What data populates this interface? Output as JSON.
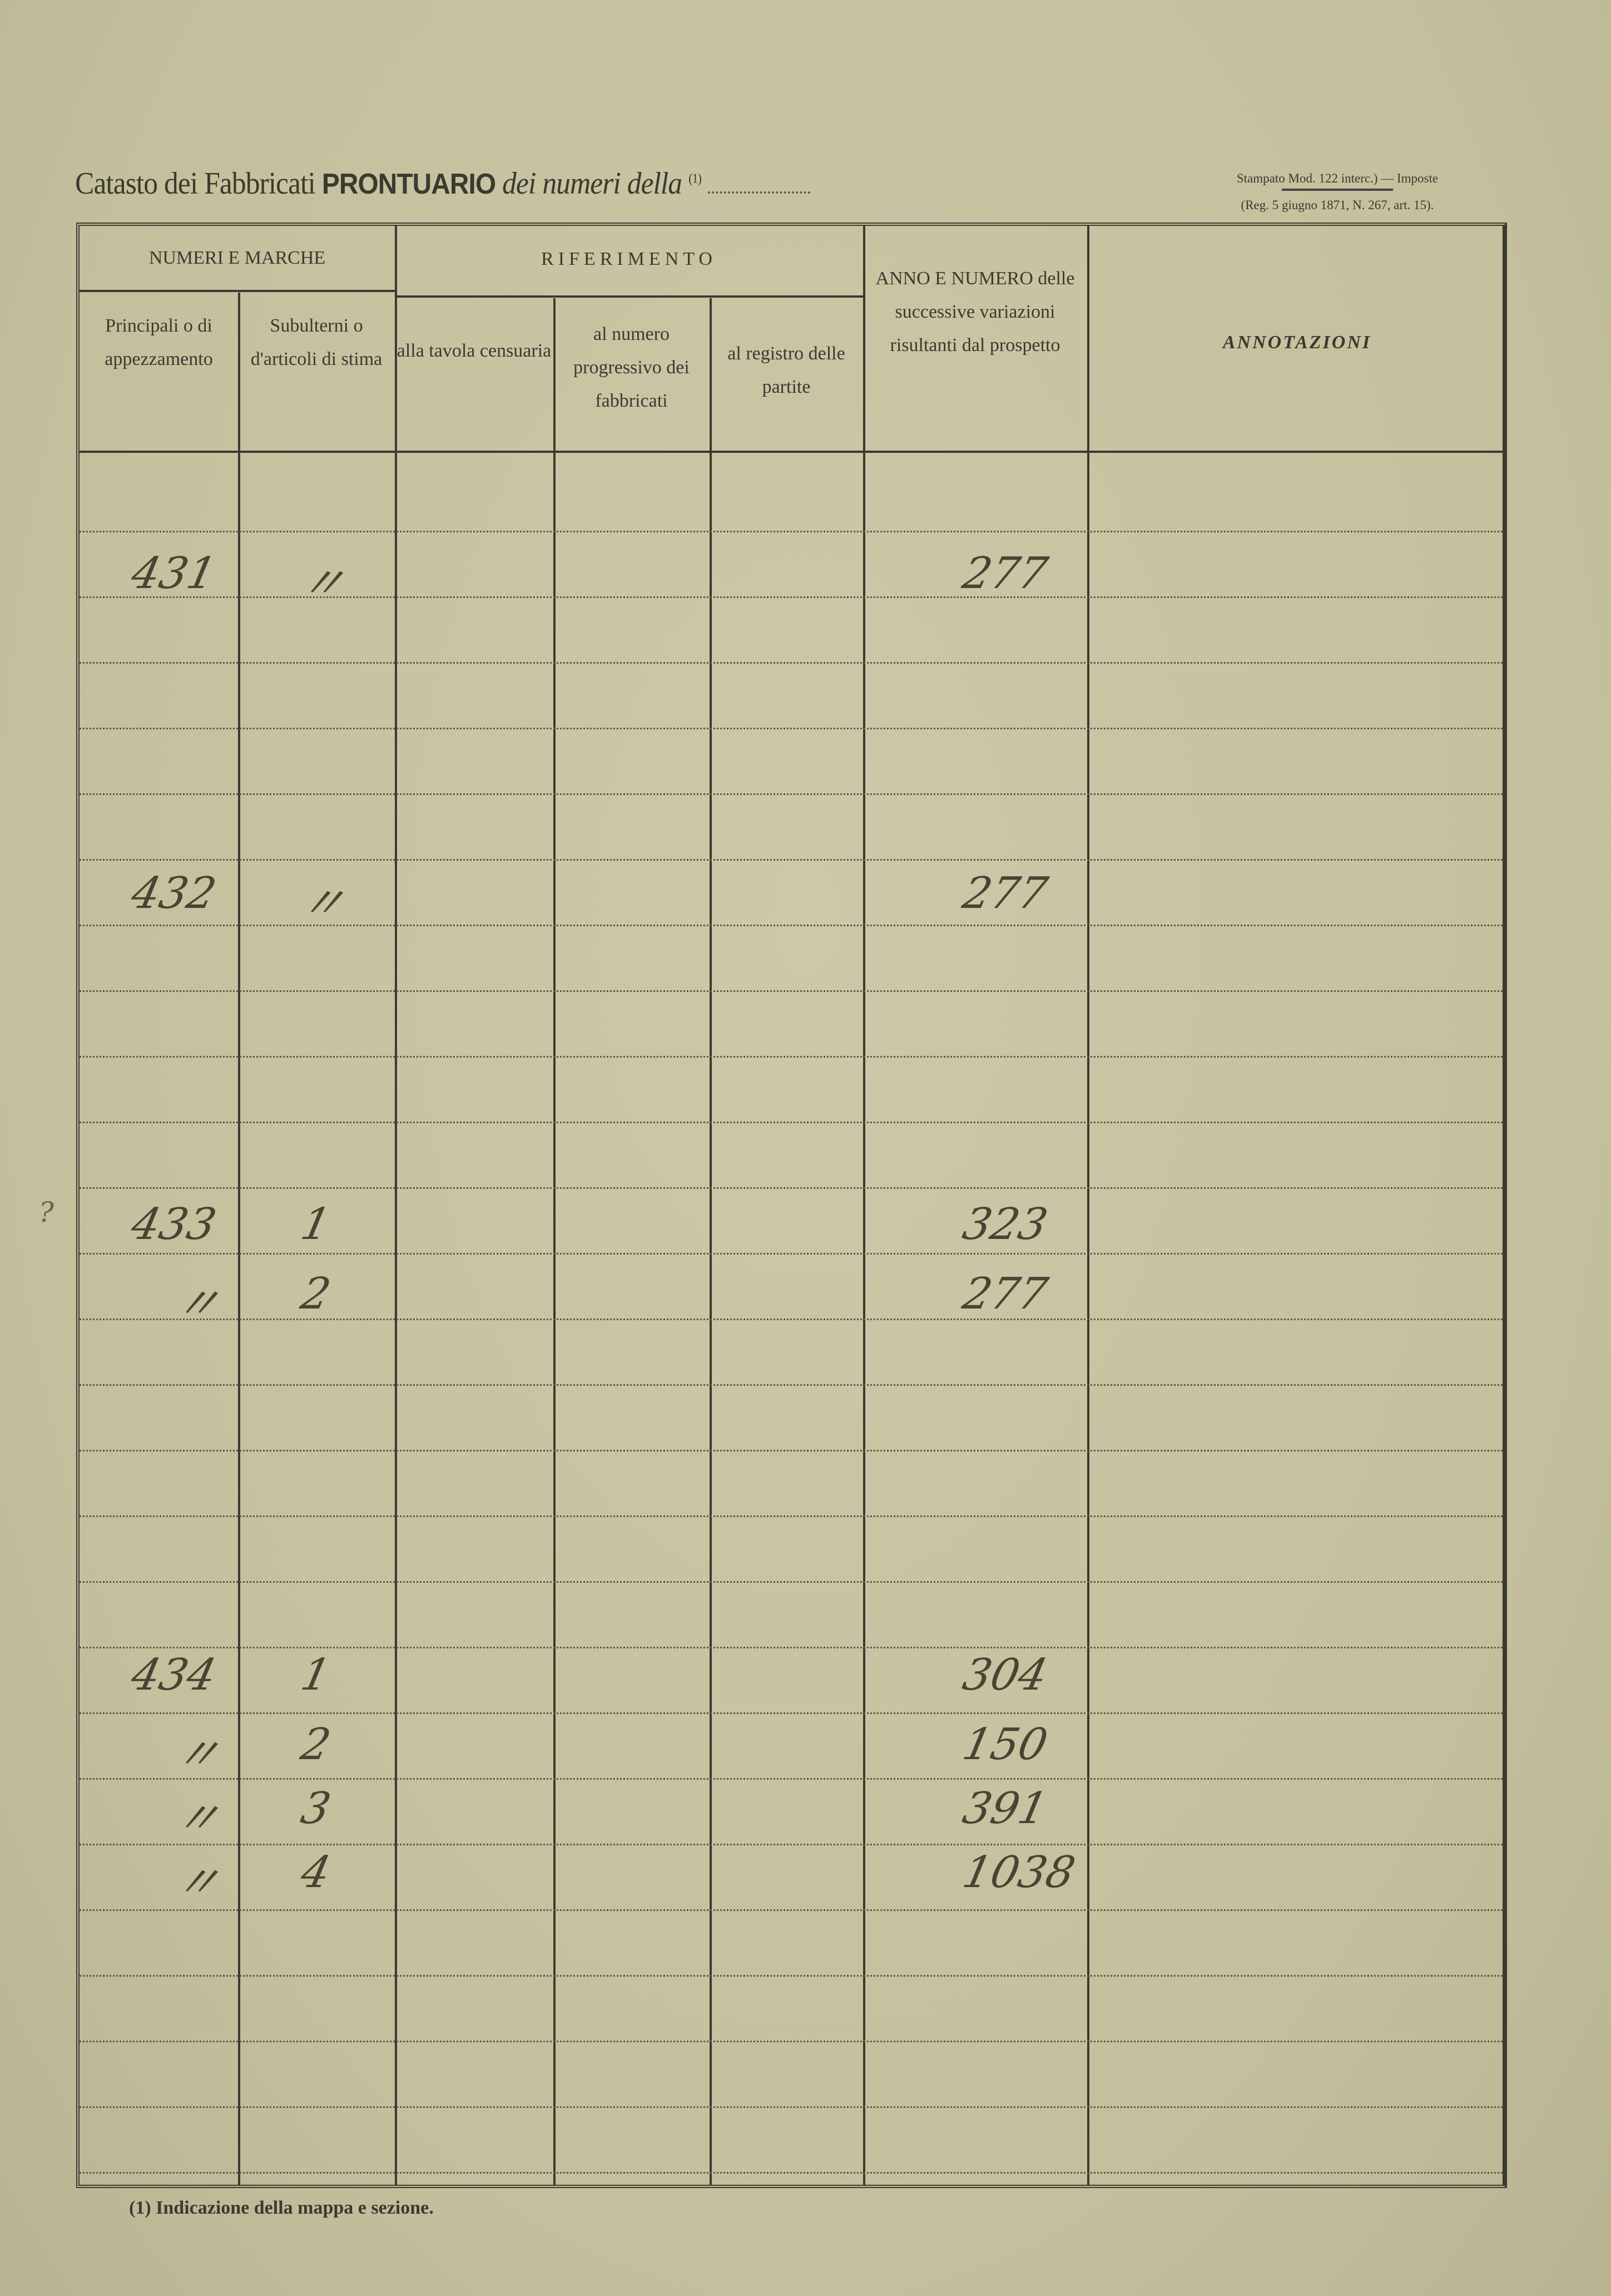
{
  "header": {
    "title_prefix": "Catasto dei Fabbricati",
    "title_bold": "PRONTUARIO",
    "title_italic": "dei numeri della",
    "title_note_ref": "(1)",
    "stamp_line1": "Stampato Mod. 122 interc.) — Imposte",
    "stamp_line2": "(Reg. 5 giugno 1871, N. 267, art. 15)."
  },
  "table": {
    "group_numeri": "NUMERI E MARCHE",
    "group_riferimento": "RIFERIMENTO",
    "columns": [
      "Principali o di appezzamento",
      "Subulterni o d'articoli di stima",
      "alla tavola censuaria",
      "al numero progressivo dei fabbricati",
      "al registro delle partite",
      "ANNO E NUMERO delle successive variazioni risultanti dal prospetto",
      "ANNOTAZIONI"
    ],
    "entries": [
      {
        "principale": "431",
        "subalterno": "〃",
        "anno_numero": "277"
      },
      {
        "principale": "432",
        "subalterno": "〃",
        "anno_numero": "277"
      },
      {
        "principale": "433",
        "subalterno": "1",
        "anno_numero": "323"
      },
      {
        "principale": "〃",
        "subalterno": "2",
        "anno_numero": "277"
      },
      {
        "principale": "434",
        "subalterno": "1",
        "anno_numero": "304"
      },
      {
        "principale": "〃",
        "subalterno": "2",
        "anno_numero": "150"
      },
      {
        "principale": "〃",
        "subalterno": "3",
        "anno_numero": "391"
      },
      {
        "principale": "〃",
        "subalterno": "4",
        "anno_numero": "1038"
      }
    ],
    "margin_mark": "?"
  },
  "footnote": "(1) Indicazione della mappa e sezione."
}
